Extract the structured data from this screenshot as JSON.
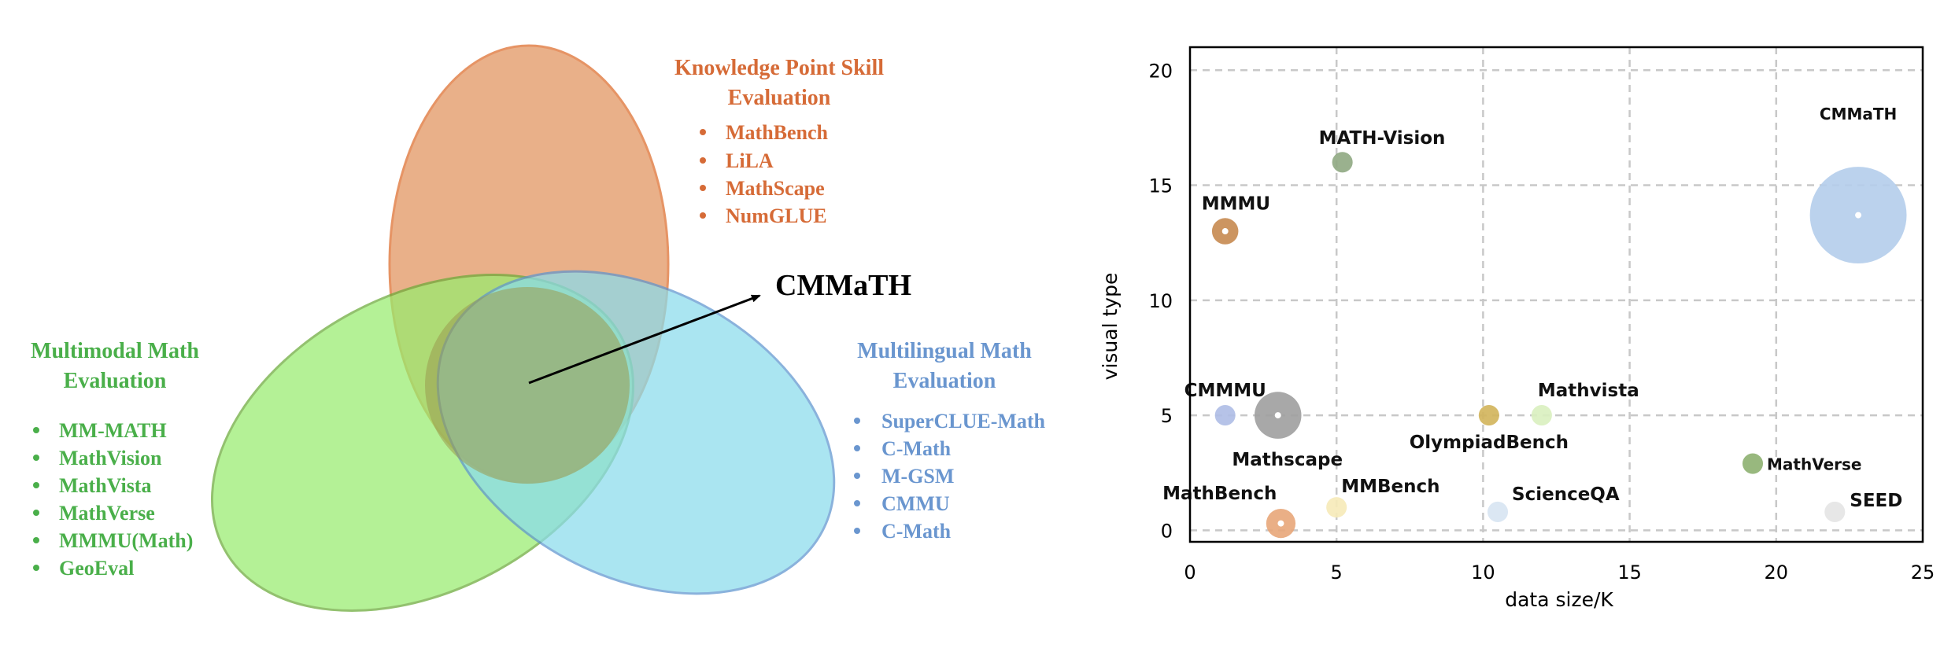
{
  "venn": {
    "center_label": "CMMaTH",
    "sets": [
      {
        "title_lines": [
          "Knowledge Point Skill",
          "Evaluation"
        ],
        "items": [
          "MathBench",
          "LiLA",
          "MathScape",
          "NumGLUE"
        ],
        "text_color": "#d66b37",
        "fill": "#e49a69",
        "stroke": "#e0773a"
      },
      {
        "title_lines": [
          "Multimodal Math",
          "Evaluation"
        ],
        "items": [
          "MM-MATH",
          "MathVision",
          "MathVista",
          "MathVerse",
          "MMMU(Math)",
          "GeoEval"
        ],
        "text_color": "#4aaf4a",
        "fill": "#98ec6e",
        "stroke": "#6aaa38"
      },
      {
        "title_lines": [
          "Multilingual Math",
          "Evaluation"
        ],
        "items": [
          "SuperCLUE-Math",
          "C-Math",
          "M-GSM",
          "CMMU",
          "C-Math"
        ],
        "text_color": "#6a96cf",
        "fill": "#8adcec",
        "stroke": "#5e95cf"
      }
    ]
  },
  "chart_data": {
    "type": "scatter",
    "title": "",
    "xlabel": "data size/K",
    "ylabel": "visual type",
    "xlim": [
      0,
      25
    ],
    "ylim": [
      -0.5,
      21
    ],
    "grid": true,
    "x_ticks": [
      "0",
      "5",
      "10",
      "15",
      "20",
      "25"
    ],
    "y_ticks": [
      "0",
      "5",
      "10",
      "15",
      "20"
    ],
    "points": [
      {
        "label": "MATH-Vision",
        "x": 5.2,
        "y": 16,
        "size": 0.7,
        "color": "#8fa882"
      },
      {
        "label": "MMMU",
        "x": 1.2,
        "y": 13,
        "size": 0.9,
        "color": "#c78950",
        "dot": true
      },
      {
        "label": "CMMaTH",
        "x": 22.8,
        "y": 13.7,
        "size": 3.3,
        "color": "#b4cdeb",
        "dot": true
      },
      {
        "label": "CMMMU",
        "x": 1.2,
        "y": 5,
        "size": 0.7,
        "color": "#aebde5"
      },
      {
        "label": "Mathscape",
        "x": 3.0,
        "y": 5,
        "size": 1.6,
        "color": "#9e9e9e",
        "dot": true
      },
      {
        "label": "OlympiadBench",
        "x": 10.2,
        "y": 5,
        "size": 0.7,
        "color": "#d1b45a"
      },
      {
        "label": "Mathvista",
        "x": 12.0,
        "y": 5,
        "size": 0.7,
        "color": "#d9efbf"
      },
      {
        "label": "MathVerse",
        "x": 19.2,
        "y": 2.9,
        "size": 0.7,
        "color": "#8db070"
      },
      {
        "label": "MathBench",
        "x": 3.1,
        "y": 0.3,
        "size": 1.0,
        "color": "#e8a679",
        "dot": true
      },
      {
        "label": "MMBench",
        "x": 5.0,
        "y": 1.0,
        "size": 0.7,
        "color": "#f6eab8"
      },
      {
        "label": "ScienceQA",
        "x": 10.5,
        "y": 0.8,
        "size": 0.7,
        "color": "#d7e4f2"
      },
      {
        "label": "SEED",
        "x": 22.0,
        "y": 0.8,
        "size": 0.7,
        "color": "#e4e4e4"
      }
    ]
  }
}
